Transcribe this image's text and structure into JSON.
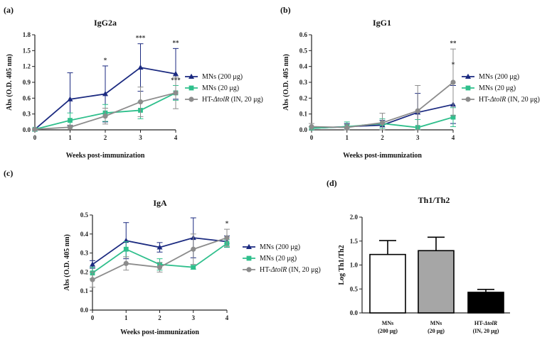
{
  "chart_data": [
    {
      "panel_label": "(a)",
      "type": "line",
      "title": "IgG2a",
      "xlabel": "Weeks post-immunization",
      "ylabel": "Abs (O.D. 405 nm)",
      "x": [
        0,
        1,
        2,
        3,
        4
      ],
      "xlim": [
        0,
        4
      ],
      "ylim": [
        0,
        1.8
      ],
      "yticks": [
        "0.0",
        "0.3",
        "0.6",
        "0.9",
        "1.2",
        "1.5",
        "1.8"
      ],
      "series": [
        {
          "name": "MNs (200 μg)",
          "values": [
            0.01,
            0.58,
            0.68,
            1.18,
            1.06
          ],
          "errors": [
            0.01,
            0.5,
            0.53,
            0.45,
            0.48
          ]
        },
        {
          "name": "MNs (20 μg)",
          "values": [
            0.01,
            0.18,
            0.32,
            0.37,
            0.7
          ],
          "errors": [
            0.01,
            0.14,
            0.16,
            0.16,
            0.14
          ]
        },
        {
          "name": "HT-ΔtolR (IN, 20 μg)",
          "values": [
            0.01,
            0.05,
            0.26,
            0.53,
            0.7
          ],
          "errors": [
            0.01,
            0.04,
            0.15,
            0.28,
            0.3
          ]
        }
      ],
      "annotations": [
        {
          "x": 2,
          "text": "*"
        },
        {
          "x": 3,
          "text": "***"
        },
        {
          "x": 4,
          "text": "**"
        },
        {
          "x": 4,
          "text": "***"
        }
      ]
    },
    {
      "panel_label": "(b)",
      "type": "line",
      "title": "IgG1",
      "xlabel": "Weeks post-immunization",
      "ylabel": "Abs (O.D. 405 nm)",
      "x": [
        0,
        1,
        2,
        3,
        4
      ],
      "xlim": [
        0,
        4
      ],
      "ylim": [
        0,
        0.6
      ],
      "yticks": [
        "0.0",
        "0.1",
        "0.2",
        "0.3",
        "0.4",
        "0.5",
        "0.6"
      ],
      "series": [
        {
          "name": "MNs (200 μg)",
          "values": [
            0.01,
            0.02,
            0.03,
            0.11,
            0.16
          ],
          "errors": [
            0.01,
            0.02,
            0.03,
            0.12,
            0.12
          ]
        },
        {
          "name": "MNs (20 μg)",
          "values": [
            0.01,
            0.02,
            0.04,
            0.015,
            0.08
          ],
          "errors": [
            0.01,
            0.03,
            0.03,
            0.05,
            0.06
          ]
        },
        {
          "name": "HT-ΔtolR (IN, 20 μg)",
          "values": [
            0.02,
            0.015,
            0.045,
            0.12,
            0.3
          ],
          "errors": [
            0.02,
            0.02,
            0.06,
            0.16,
            0.21
          ]
        }
      ],
      "annotations": [
        {
          "x": 4,
          "text": "**"
        },
        {
          "x": 4,
          "text": "*"
        }
      ]
    },
    {
      "panel_label": "(c)",
      "type": "line",
      "title": "IgA",
      "xlabel": "Weeks post-immunization",
      "ylabel": "Abs (O.D. 405 nm)",
      "x": [
        0,
        1,
        2,
        3,
        4
      ],
      "xlim": [
        0,
        4
      ],
      "ylim": [
        0,
        0.5
      ],
      "yticks": [
        "0.0",
        "0.1",
        "0.2",
        "0.3",
        "0.4",
        "0.5"
      ],
      "series": [
        {
          "name": "MNs (200 μg)",
          "values": [
            0.24,
            0.365,
            0.33,
            0.38,
            0.36
          ],
          "errors": [
            0.02,
            0.095,
            0.025,
            0.105,
            0.03
          ]
        },
        {
          "name": "MNs (20 μg)",
          "values": [
            0.195,
            0.32,
            0.24,
            0.225,
            0.35
          ],
          "errors": [
            0.03,
            0.04,
            0.03,
            0.01,
            0.02
          ]
        },
        {
          "name": "HT-ΔtolR (IN, 20 μg)",
          "values": [
            0.16,
            0.245,
            0.225,
            0.32,
            0.38
          ],
          "errors": [
            0.04,
            0.035,
            0.025,
            0.08,
            0.045
          ]
        }
      ],
      "annotations": [
        {
          "x": 4,
          "text": "*"
        }
      ]
    },
    {
      "panel_label": "(d)",
      "type": "bar",
      "title": "Th1/Th2",
      "ylabel": "Log Th1/Th2",
      "ylim": [
        0,
        2.0
      ],
      "yticks": [
        "0.0",
        "0.5",
        "1.0",
        "1.5",
        "2.0"
      ],
      "categories": [
        {
          "line1": "MNs",
          "line2": "(200 μg)"
        },
        {
          "line1": "MNs",
          "line2": "(20 μg)"
        },
        {
          "line1": "HT-ΔtolR",
          "line2": "(IN, 20 μg)"
        }
      ],
      "values": [
        1.22,
        1.3,
        0.43
      ],
      "errors": [
        0.29,
        0.28,
        0.06
      ]
    }
  ],
  "colors": {
    "series": [
      "#1b2a80",
      "#2fbf8c",
      "#8c8c8c"
    ],
    "bars": [
      "#ffffff",
      "#a6a6a6",
      "#000000"
    ],
    "axis": "#222222"
  }
}
